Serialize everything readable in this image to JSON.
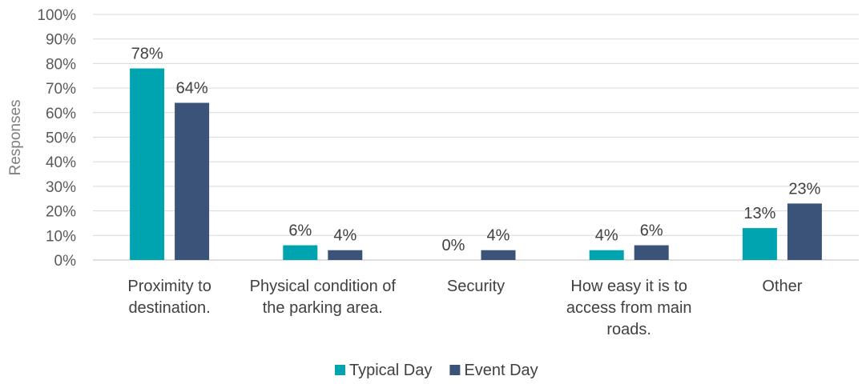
{
  "chart_data": {
    "type": "bar",
    "categories": [
      [
        "Proximity to",
        "destination."
      ],
      [
        "Physical condition of",
        "the parking area."
      ],
      [
        "Security"
      ],
      [
        "How easy it is to",
        "access from main",
        "roads."
      ],
      [
        "Other"
      ]
    ],
    "series": [
      {
        "name": "Typical Day",
        "color": "#00A4B0",
        "values": [
          78,
          6,
          0,
          4,
          13
        ],
        "labels": [
          "78%",
          "6%",
          "0%",
          "4%",
          "13%"
        ]
      },
      {
        "name": "Event Day",
        "color": "#3B5279",
        "values": [
          64,
          4,
          4,
          6,
          23
        ],
        "labels": [
          "64%",
          "4%",
          "4%",
          "6%",
          "23%"
        ]
      }
    ],
    "y_ticks": [
      "0%",
      "10%",
      "20%",
      "30%",
      "40%",
      "50%",
      "60%",
      "70%",
      "80%",
      "90%",
      "100%"
    ],
    "ylabel": "Responses",
    "ylim": [
      0,
      100
    ],
    "grid": true,
    "legend_position": "bottom"
  }
}
